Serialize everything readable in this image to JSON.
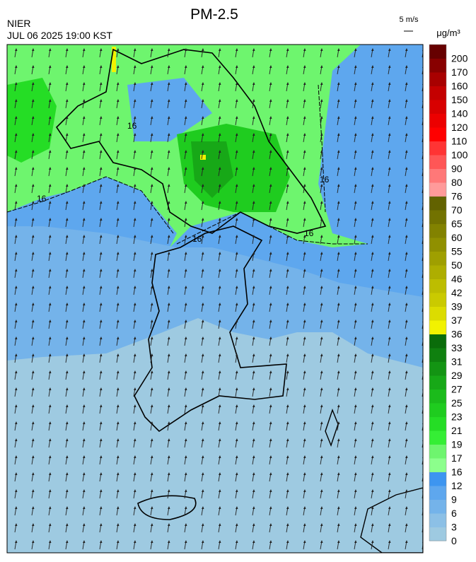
{
  "header": {
    "title": "PM-2.5",
    "agency": "NIER",
    "timestamp": "JUL 06 2025 19:00 KST",
    "wind_scale": "5 m/s",
    "unit": "μg/m³"
  },
  "map": {
    "contour_labels": [
      "16",
      "16",
      "16",
      "16",
      "16"
    ]
  },
  "colorbar": [
    {
      "label": "0",
      "color": "#9ecae1"
    },
    {
      "label": "3",
      "color": "#8cc0e6"
    },
    {
      "label": "6",
      "color": "#74b3ea"
    },
    {
      "label": "9",
      "color": "#5ea7ee"
    },
    {
      "label": "12",
      "color": "#3d95f0"
    },
    {
      "label": "16",
      "color": "#8cff8c"
    },
    {
      "label": "17",
      "color": "#6ef56e"
    },
    {
      "label": "19",
      "color": "#35ee35"
    },
    {
      "label": "21",
      "color": "#25dd25"
    },
    {
      "label": "23",
      "color": "#1fcc1f"
    },
    {
      "label": "25",
      "color": "#1bbb1b"
    },
    {
      "label": "27",
      "color": "#17a817"
    },
    {
      "label": "29",
      "color": "#139413"
    },
    {
      "label": "31",
      "color": "#0f800f"
    },
    {
      "label": "33",
      "color": "#0a6c0a"
    },
    {
      "label": "36",
      "color": "#f2f200"
    },
    {
      "label": "37",
      "color": "#dcdc00"
    },
    {
      "label": "39",
      "color": "#caca00"
    },
    {
      "label": "42",
      "color": "#bdbd00"
    },
    {
      "label": "46",
      "color": "#aeae00"
    },
    {
      "label": "50",
      "color": "#9f9f00"
    },
    {
      "label": "55",
      "color": "#909000"
    },
    {
      "label": "60",
      "color": "#828200"
    },
    {
      "label": "65",
      "color": "#727200"
    },
    {
      "label": "70",
      "color": "#626200"
    },
    {
      "label": "76",
      "color": "#ff9a9a"
    },
    {
      "label": "80",
      "color": "#ff7878"
    },
    {
      "label": "90",
      "color": "#ff5656"
    },
    {
      "label": "100",
      "color": "#ff3434"
    },
    {
      "label": "110",
      "color": "#ff0000"
    },
    {
      "label": "120",
      "color": "#ec0000"
    },
    {
      "label": "140",
      "color": "#d80000"
    },
    {
      "label": "150",
      "color": "#c40000"
    },
    {
      "label": "160",
      "color": "#a80000"
    },
    {
      "label": "170",
      "color": "#880000"
    },
    {
      "label": "200",
      "color": "#660000"
    }
  ]
}
